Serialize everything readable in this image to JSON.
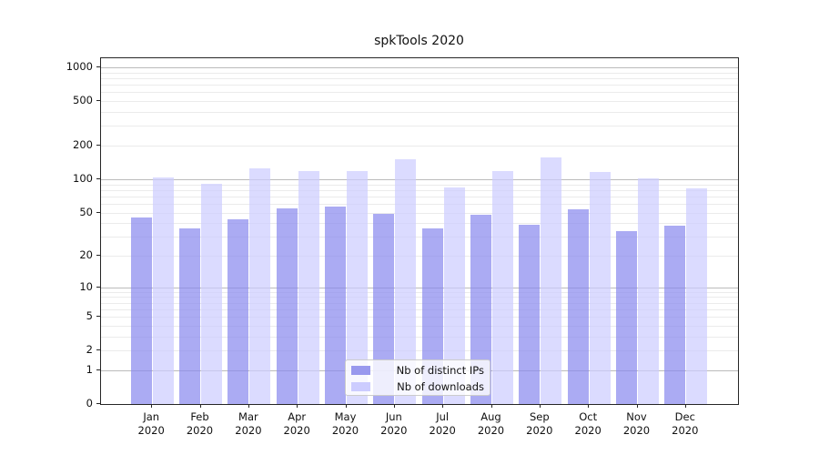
{
  "title": "spkTools 2020",
  "legend": {
    "items": [
      {
        "label": "Nb of distinct IPs",
        "color": "#9999ee"
      },
      {
        "label": "Nb of downloads",
        "color": "#ccccff"
      }
    ]
  },
  "chart_data": {
    "type": "bar",
    "title": "spkTools 2020",
    "categories": [
      "Jan",
      "Feb",
      "Mar",
      "Apr",
      "May",
      "Jun",
      "Jul",
      "Aug",
      "Sep",
      "Oct",
      "Nov",
      "Dec"
    ],
    "year_label": "2020",
    "series": [
      {
        "name": "Nb of distinct IPs",
        "color": "rgba(136,136,238,0.7)",
        "values": [
          45,
          36,
          43,
          54,
          57,
          49,
          36,
          48,
          39,
          53,
          34,
          38
        ]
      },
      {
        "name": "Nb of downloads",
        "color": "rgba(204,204,255,0.7)",
        "values": [
          103,
          91,
          125,
          119,
          118,
          150,
          85,
          119,
          156,
          116,
          101,
          82
        ]
      }
    ],
    "xlabel": "",
    "ylabel": "",
    "yscale": "log1p",
    "yticks": [
      0,
      1,
      2,
      5,
      10,
      20,
      50,
      100,
      200,
      500,
      1000
    ],
    "ylim": [
      0,
      1200
    ],
    "grid": true,
    "legend_position": "lower center"
  }
}
